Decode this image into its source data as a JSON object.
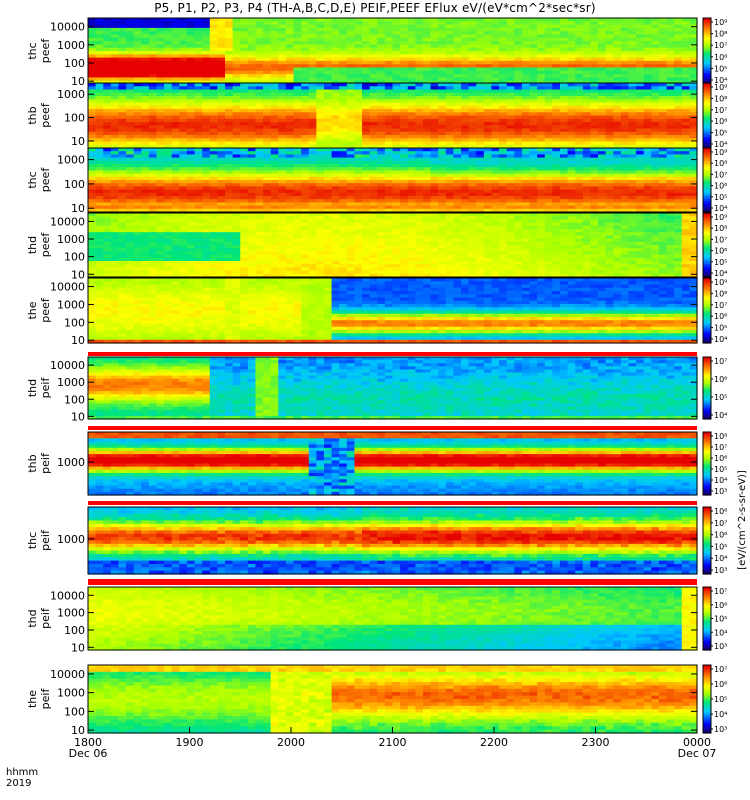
{
  "title": "P5, P1, P2, P3, P4 (TH-A,B,C,D,E) PEIF,PEEF EFlux eV/(eV*cm^2*sec*sr)",
  "footer": {
    "time_label_1": "hhmm",
    "time_label_2": "2019"
  },
  "colorbar_label": "[eV/(cm^2-s-sr-eV)]",
  "colors": {
    "background": "#ffffff",
    "fill_band": "#ff0000"
  },
  "chart_data": {
    "type": "heatmap",
    "x_axis": {
      "range": [
        "1800",
        "0000"
      ],
      "tick_labels": [
        "1800",
        "1900",
        "2000",
        "2100",
        "2200",
        "2300",
        "0000"
      ],
      "date_labels": [
        "Dec 06",
        "",
        "",
        "",
        "",
        "",
        "Dec 07"
      ]
    },
    "y_scale": "log",
    "colormap": "rainbow (blue low → red high)",
    "panels": [
      {
        "name": "thc peef",
        "label_line1": "thc",
        "label_line2": "peef",
        "yrange": [
          7,
          30000
        ],
        "yticks": [
          "10",
          "100",
          "1000",
          "10000"
        ],
        "cbar_ticks": [
          "10⁴",
          "10⁵",
          "10⁶",
          "10⁷",
          "10⁸",
          "10⁹"
        ]
      },
      {
        "name": "thb peef",
        "label_line1": "thb",
        "label_line2": "peef",
        "yrange": [
          5,
          3000
        ],
        "yticks": [
          "10",
          "100",
          "1000"
        ],
        "cbar_ticks": [
          "10⁴",
          "10⁵",
          "10⁶",
          "10⁷",
          "10⁸",
          "10⁹"
        ]
      },
      {
        "name": "thc peef",
        "label_line1": "thc",
        "label_line2": "peef",
        "yrange": [
          7,
          3000
        ],
        "yticks": [
          "10",
          "100",
          "1000"
        ],
        "cbar_ticks": [
          "10⁴",
          "10⁵",
          "10⁶",
          "10⁷",
          "10⁸",
          "10⁹"
        ]
      },
      {
        "name": "thd peef",
        "label_line1": "thd",
        "label_line2": "peef",
        "yrange": [
          7,
          30000
        ],
        "yticks": [
          "10",
          "100",
          "1000",
          "10000"
        ],
        "cbar_ticks": [
          "10⁴",
          "10⁵",
          "10⁶",
          "10⁷",
          "10⁸",
          "10⁹"
        ]
      },
      {
        "name": "the peef",
        "label_line1": "the",
        "label_line2": "peef",
        "yrange": [
          7,
          30000
        ],
        "yticks": [
          "10",
          "100",
          "1000",
          "10000"
        ],
        "cbar_ticks": [
          "10⁴",
          "10⁵",
          "10⁶",
          "10⁷",
          "10⁸",
          "10⁹"
        ]
      },
      {
        "name": "thd peif",
        "label_line1": "thd",
        "label_line2": "peif",
        "yrange": [
          7,
          30000
        ],
        "yticks": [
          "10",
          "100",
          "1000",
          "10000"
        ],
        "cbar_ticks": [
          "10⁴",
          "10⁵",
          "10⁶",
          "10⁷"
        ]
      },
      {
        "name": "thb peif",
        "label_line1": "thb",
        "label_line2": "peif",
        "yrange": [
          300,
          3000
        ],
        "yticks": [
          "1000"
        ],
        "cbar_ticks": [
          "10³",
          "10⁴",
          "10⁵",
          "10⁶",
          "10⁷",
          "10⁸"
        ]
      },
      {
        "name": "thc peif",
        "label_line1": "thc",
        "label_line2": "peif",
        "yrange": [
          300,
          3000
        ],
        "yticks": [
          "1000"
        ],
        "cbar_ticks": [
          "10³",
          "10⁴",
          "10⁵",
          "10⁶",
          "10⁷",
          "10⁸"
        ]
      },
      {
        "name": "thd peif",
        "label_line1": "thd",
        "label_line2": "peif",
        "yrange": [
          7,
          30000
        ],
        "yticks": [
          "10",
          "100",
          "1000",
          "10000"
        ],
        "cbar_ticks": [
          "10³",
          "10⁴",
          "10⁵",
          "10⁶",
          "10⁷"
        ]
      },
      {
        "name": "the peif",
        "label_line1": "the",
        "label_line2": "peif",
        "yrange": [
          7,
          30000
        ],
        "yticks": [
          "10",
          "100",
          "1000",
          "10000"
        ],
        "cbar_ticks": [
          "10³",
          "10⁴",
          "10⁵",
          "10⁶",
          "10⁷"
        ]
      }
    ]
  }
}
